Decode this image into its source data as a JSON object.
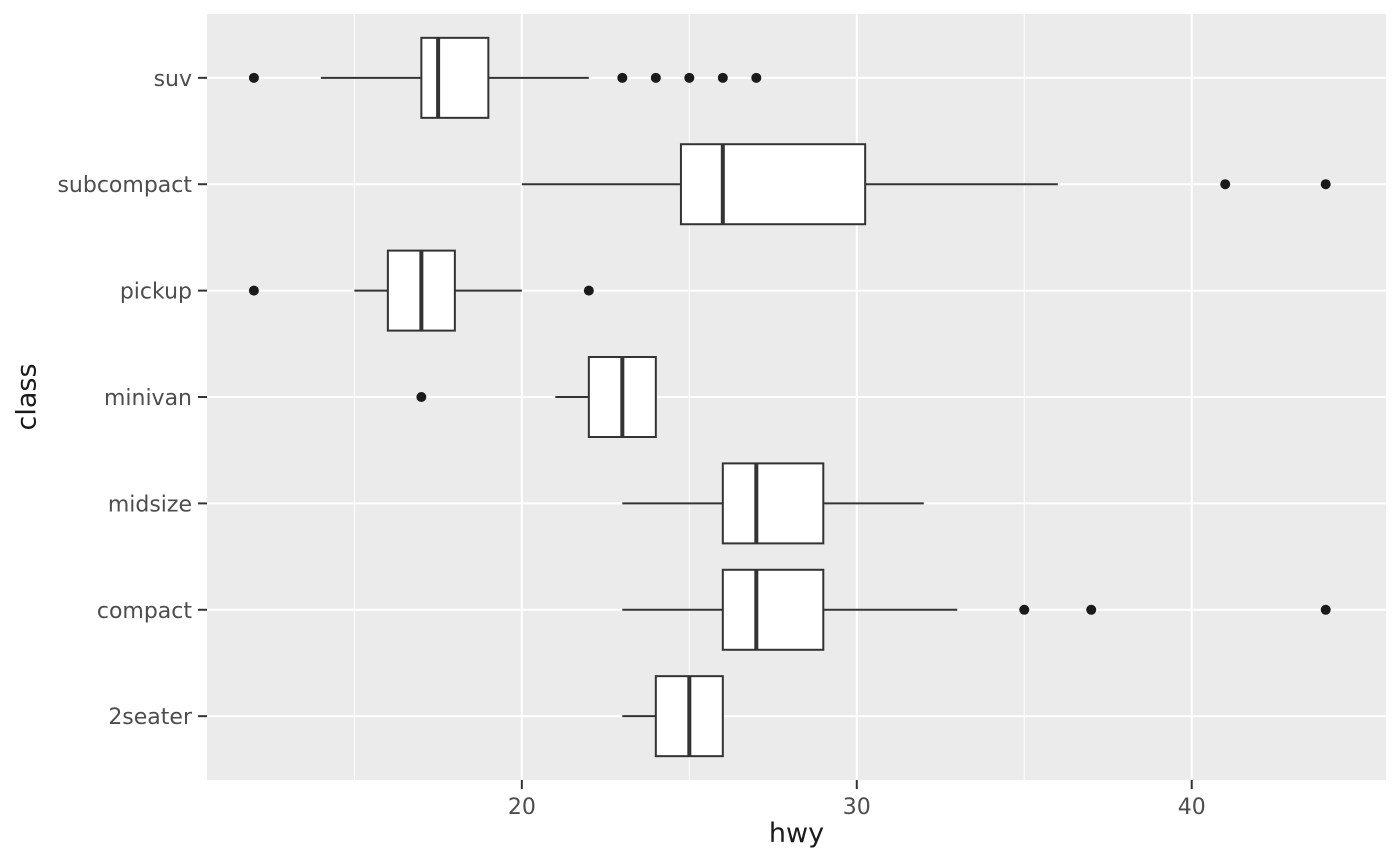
{
  "chart_data": {
    "type": "boxplot",
    "orientation": "horizontal",
    "title": "",
    "xlabel": "hwy",
    "ylabel": "class",
    "xlim": [
      10.6,
      45.8
    ],
    "x_major_ticks": [
      20,
      30,
      40
    ],
    "x_minor_gridlines": [
      15,
      25,
      35
    ],
    "grid": "white major + minor vertical gridlines, white major horizontal gridlines on gray panel",
    "legend": "none",
    "categories_top_to_bottom": [
      "suv",
      "subcompact",
      "pickup",
      "minivan",
      "midsize",
      "compact",
      "2seater"
    ],
    "series": [
      {
        "category": "suv",
        "whisker_low": 14,
        "q1": 17,
        "median": 17.5,
        "q3": 19,
        "whisker_high": 22,
        "outliers": [
          12,
          23,
          24,
          25,
          26,
          27
        ]
      },
      {
        "category": "subcompact",
        "whisker_low": 20,
        "q1": 24.75,
        "median": 26,
        "q3": 30.25,
        "whisker_high": 36,
        "outliers": [
          41,
          44
        ]
      },
      {
        "category": "pickup",
        "whisker_low": 15,
        "q1": 16,
        "median": 17,
        "q3": 18,
        "whisker_high": 20,
        "outliers": [
          12,
          22
        ]
      },
      {
        "category": "minivan",
        "whisker_low": 21,
        "q1": 22,
        "median": 23,
        "q3": 24,
        "whisker_high": 24,
        "outliers": [
          17
        ]
      },
      {
        "category": "midsize",
        "whisker_low": 23,
        "q1": 26,
        "median": 27,
        "q3": 29,
        "whisker_high": 32,
        "outliers": []
      },
      {
        "category": "compact",
        "whisker_low": 23,
        "q1": 26,
        "median": 27,
        "q3": 29,
        "whisker_high": 33,
        "outliers": [
          35,
          37,
          44
        ]
      },
      {
        "category": "2seater",
        "whisker_low": 23,
        "q1": 24,
        "median": 25,
        "q3": 26,
        "whisker_high": 26,
        "outliers": []
      }
    ],
    "colors": {
      "panel_bg": "#EBEBEB",
      "grid": "#FFFFFF",
      "box_fill": "#FFFFFF",
      "stroke": "#333333",
      "point": "#1A1A1A",
      "tick_label": "#4D4D4D",
      "axis_title": "#1A1A1A"
    }
  }
}
